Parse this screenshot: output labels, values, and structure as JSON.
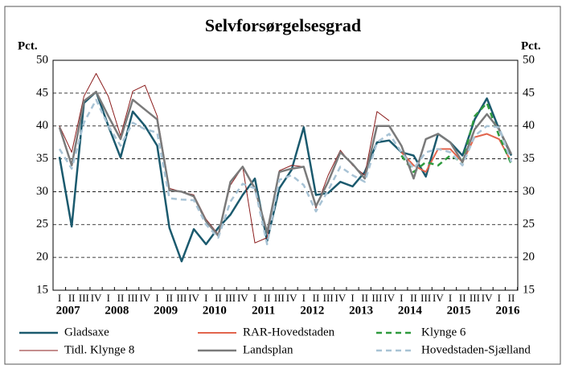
{
  "chart_data": {
    "type": "line",
    "title": "Selvforsørgelsesgrad",
    "ylabel": "Pct.",
    "categories": [
      "I",
      "II",
      "III",
      "IV",
      "I",
      "II",
      "III",
      "IV",
      "I",
      "II",
      "III",
      "IV",
      "I",
      "II",
      "III",
      "IV",
      "I",
      "II",
      "III",
      "IV",
      "I",
      "II",
      "III",
      "IV",
      "I",
      "II",
      "III",
      "IV",
      "I",
      "II",
      "III",
      "IV",
      "I",
      "II",
      "III",
      "IV",
      "I",
      "II"
    ],
    "years": [
      "2007",
      "2008",
      "2009",
      "2010",
      "2011",
      "2012",
      "2013",
      "2014",
      "2015",
      "2016"
    ],
    "ylim": [
      15,
      50
    ],
    "yticks": [
      15,
      20,
      25,
      30,
      35,
      40,
      45,
      50
    ],
    "grid": true,
    "series": [
      {
        "name": "Gladsaxe",
        "color": "#1b5a6e",
        "width": 2.5,
        "dash": false,
        "values": [
          35.3,
          24.7,
          43.5,
          45.2,
          40,
          35.2,
          42.2,
          40,
          37,
          24.5,
          19.4,
          24.3,
          22,
          24.5,
          26.5,
          29.5,
          32,
          22.5,
          30.5,
          33.3,
          39.8,
          29.5,
          29.8,
          31.5,
          30.8,
          33,
          37.5,
          37.8,
          36,
          35.5,
          32.3,
          38.8,
          37.5,
          35.5,
          41,
          44.2,
          39.5,
          35.5
        ]
      },
      {
        "name": "RAR-Hovedstaden",
        "color": "#e2654d",
        "width": 2,
        "dash": false,
        "values": [
          null,
          null,
          null,
          null,
          null,
          null,
          null,
          null,
          null,
          null,
          null,
          null,
          null,
          null,
          null,
          null,
          null,
          null,
          null,
          null,
          null,
          null,
          null,
          null,
          null,
          null,
          null,
          null,
          36,
          34,
          33,
          36.5,
          36.5,
          34.5,
          38.3,
          38.8,
          38,
          34.5
        ]
      },
      {
        "name": "Klynge 6",
        "color": "#2e9a3e",
        "width": 2.5,
        "dash": true,
        "values": [
          null,
          null,
          null,
          null,
          null,
          null,
          null,
          null,
          null,
          null,
          null,
          null,
          null,
          null,
          null,
          null,
          null,
          null,
          null,
          null,
          null,
          null,
          null,
          null,
          null,
          null,
          null,
          null,
          35.5,
          33,
          34.5,
          34,
          35.5,
          34.5,
          41.5,
          43.5,
          38.5,
          34.2
        ]
      },
      {
        "name": "Tidl. Klynge 8",
        "color": "#8b1c1c",
        "width": 1,
        "dash": false,
        "values": [
          40,
          36,
          44.5,
          48,
          44.5,
          38.5,
          45.3,
          46.2,
          41.5,
          30.5,
          30,
          29.5,
          25.8,
          23.5,
          31,
          33.8,
          22.2,
          23,
          33.2,
          34,
          33.8,
          27.5,
          32.5,
          36.3,
          34,
          32.5,
          42.2,
          40.8,
          null,
          null,
          null,
          null,
          null,
          null,
          null,
          null,
          null,
          null
        ]
      },
      {
        "name": "Landsplan",
        "color": "#7a7a7a",
        "width": 2.5,
        "dash": false,
        "values": [
          39.8,
          34,
          43.8,
          45.2,
          41.5,
          38,
          44,
          42.5,
          41,
          30.2,
          30,
          29.3,
          25.5,
          23.3,
          31.5,
          33.8,
          30.5,
          23.8,
          33,
          33.5,
          33.8,
          27.8,
          31.5,
          36,
          34.2,
          32,
          40,
          40,
          37,
          32,
          38,
          38.8,
          37.5,
          34.5,
          39.5,
          41.8,
          39.5,
          35.7
        ]
      },
      {
        "name": "Hovedstaden-Sjælland",
        "color": "#a8c3d5",
        "width": 2.5,
        "dash": true,
        "values": [
          36.5,
          33.5,
          40.5,
          44,
          40,
          37,
          40.5,
          39.5,
          39,
          29,
          28.8,
          28.7,
          25,
          23,
          28.5,
          31.2,
          30.5,
          22,
          31.8,
          32.5,
          31,
          27,
          30.2,
          33.8,
          32.5,
          31.5,
          37.5,
          38.8,
          36,
          33.5,
          36,
          36.5,
          36,
          34,
          38.5,
          40,
          39.8,
          34.5
        ]
      }
    ]
  }
}
